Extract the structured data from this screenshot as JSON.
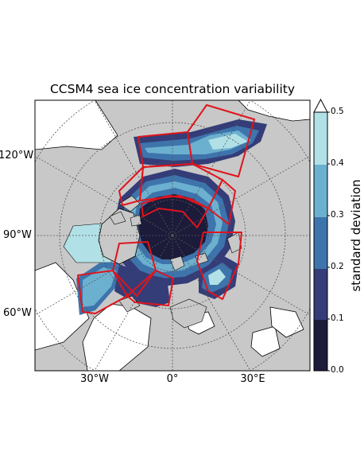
{
  "chart_data": {
    "type": "heatmap",
    "title": "CCSM4 sea ice concentration variability",
    "projection": "north polar stereographic",
    "lat_labels": [
      "120°W",
      "90°W",
      "60°W"
    ],
    "lon_labels": [
      "30°W",
      "0°",
      "30°E"
    ],
    "colorbar": {
      "label": "standard deviation",
      "ticks": [
        "0.0",
        "0.1",
        "0.2",
        "0.3",
        "0.4",
        "0.5"
      ],
      "levels": [
        0.0,
        0.1,
        0.2,
        0.3,
        0.4,
        0.5
      ],
      "extend": "max",
      "colors": [
        "#1c1b3a",
        "#343d78",
        "#3e74ac",
        "#6cb0d0",
        "#b1e1e6"
      ]
    },
    "overlay": "red outlined sector regions",
    "colors": {
      "land": "#c8c8c8",
      "coast": "#000000",
      "region_outline": "#e0141c",
      "grid": "#555555"
    }
  }
}
